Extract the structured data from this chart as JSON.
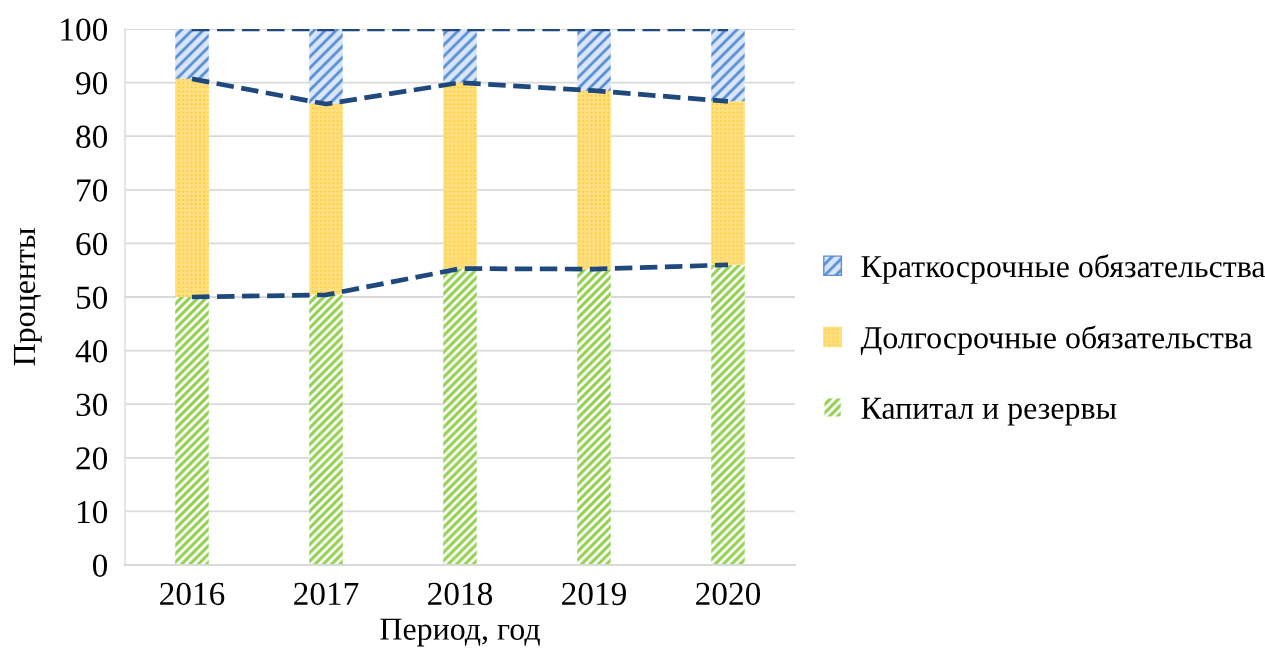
{
  "chart_data": {
    "type": "bar",
    "stacked": true,
    "xlabel": "Период, год",
    "ylabel": "Проценты",
    "categories": [
      "2016",
      "2017",
      "2018",
      "2019",
      "2020"
    ],
    "series": [
      {
        "name": "Капитал и резервы",
        "color": "#92d050",
        "values": [
          50.0,
          50.4,
          55.3,
          55.2,
          56.0
        ]
      },
      {
        "name": "Долгосрочные обязательства",
        "color": "#ffc000",
        "values": [
          40.7,
          35.6,
          34.7,
          33.3,
          30.5
        ]
      },
      {
        "name": "Краткосрочные обязательства",
        "color": "#558ed5",
        "values": [
          9.3,
          14.0,
          10.0,
          11.5,
          13.5
        ]
      },
      {
        "type": "line",
        "color": "#1f497d",
        "line_style": "dashed",
        "values": [
          50.0,
          50.4,
          55.3,
          55.2,
          56.0
        ]
      },
      {
        "type": "line",
        "color": "#1f497d",
        "line_style": "dashed",
        "values": [
          90.7,
          86.0,
          90.0,
          88.5,
          86.5
        ]
      },
      {
        "type": "line",
        "color": "#1f497d",
        "line_style": "dashed",
        "values": [
          100,
          100,
          100,
          100,
          100
        ]
      }
    ],
    "ylim": [
      0,
      100
    ],
    "yticks": [
      0,
      10,
      20,
      30,
      40,
      50,
      60,
      70,
      80,
      90,
      100
    ],
    "grid": "y",
    "legend": "right"
  }
}
